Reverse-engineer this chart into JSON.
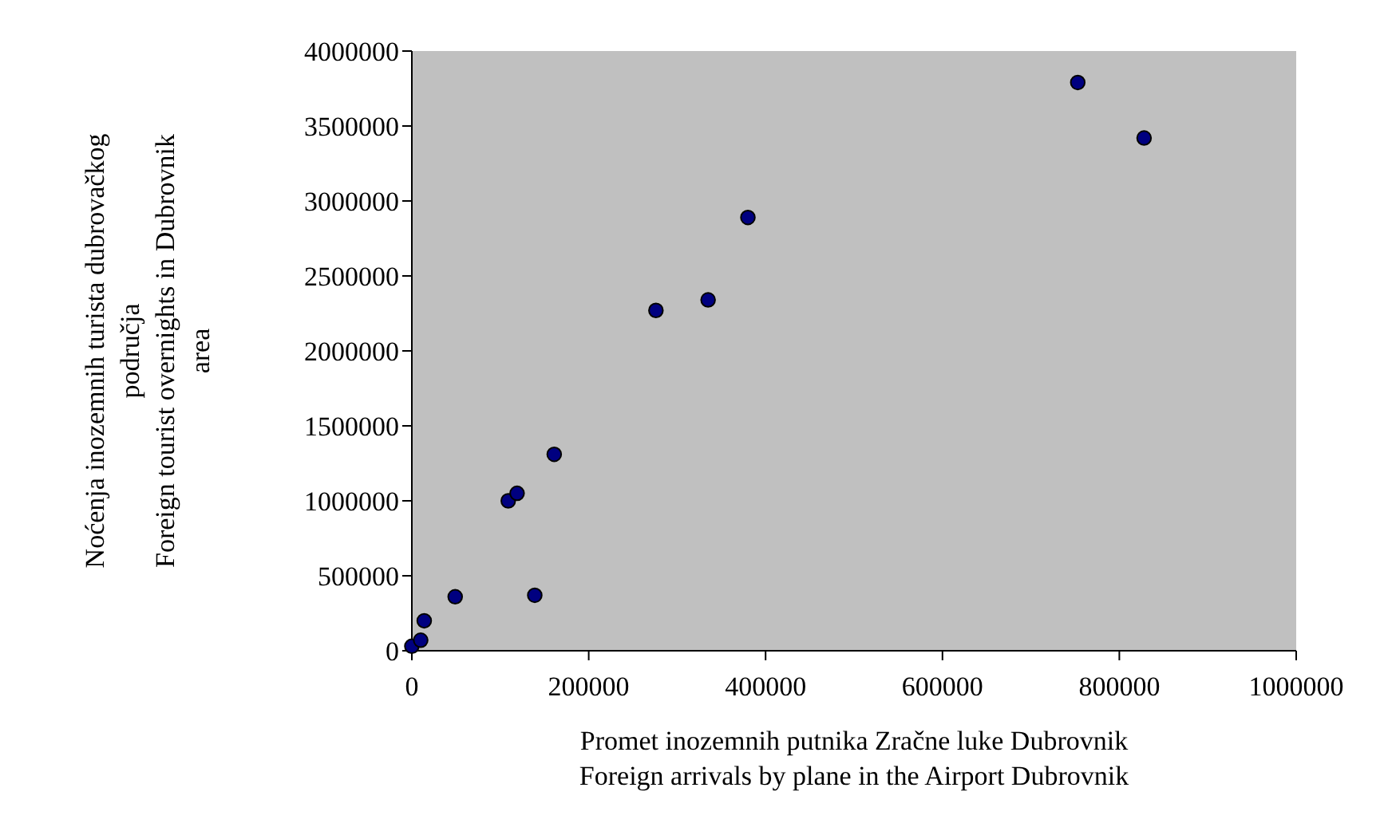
{
  "chart_data": {
    "type": "scatter",
    "xlabel": "Promet inozemnih putnika Zračne luke Dubrovnik\nForeign arrivals by plane in the Airport Dubrovnik",
    "ylabel": "Noćenja inozemnih turista dubrovačkog\npodručja\nForeign tourist overnights in Dubrovnik\narea",
    "x": [
      0,
      10000,
      14000,
      49000,
      109000,
      119000,
      139000,
      161000,
      276000,
      335000,
      380000,
      753000,
      828000
    ],
    "values": [
      30000,
      70000,
      200000,
      360000,
      1000000,
      1050000,
      370000,
      1310000,
      2270000,
      2340000,
      2890000,
      3790000,
      3420000
    ],
    "color": "#000080",
    "marker": "circle",
    "grid": false,
    "xlim": [
      0,
      1000000
    ],
    "xticks": [
      0,
      200000,
      400000,
      600000,
      800000,
      1000000
    ],
    "ylim": [
      0,
      4000000
    ],
    "yticks": [
      0,
      500000,
      1000000,
      1500000,
      2000000,
      2500000,
      3000000,
      3500000,
      4000000
    ]
  }
}
